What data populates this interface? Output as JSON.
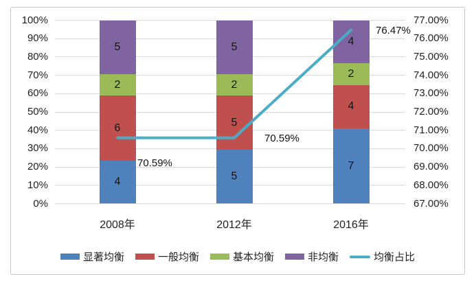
{
  "chart_data": {
    "type": "bar",
    "subtype": "100%-stacked-column-with-line",
    "title": "",
    "categories": [
      "2008年",
      "2012年",
      "2016年"
    ],
    "series": [
      {
        "name": "显著均衡",
        "type": "bar",
        "color": "#4F81BD",
        "values": [
          4,
          5,
          7
        ]
      },
      {
        "name": "一般均衡",
        "type": "bar",
        "color": "#C0504D",
        "values": [
          6,
          5,
          4
        ]
      },
      {
        "name": "基本均衡",
        "type": "bar",
        "color": "#9BBB59",
        "values": [
          2,
          2,
          2
        ]
      },
      {
        "name": "非均衡",
        "type": "bar",
        "color": "#8064A2",
        "values": [
          5,
          5,
          4
        ]
      },
      {
        "name": "均衡占比",
        "type": "line",
        "axis": "right",
        "color": "#4BACC6",
        "values": [
          70.59,
          70.59,
          76.47
        ],
        "data_labels": [
          "70.59%",
          "70.59%",
          "76.47%"
        ]
      }
    ],
    "left_axis": {
      "min": 0,
      "max": 100,
      "step": 10,
      "tick_labels": [
        "0%",
        "10%",
        "20%",
        "30%",
        "40%",
        "50%",
        "60%",
        "70%",
        "80%",
        "90%",
        "100%"
      ]
    },
    "right_axis": {
      "min": 67,
      "max": 77,
      "step": 1,
      "tick_labels": [
        "67.00%",
        "68.00%",
        "69.00%",
        "70.00%",
        "71.00%",
        "72.00%",
        "73.00%",
        "74.00%",
        "75.00%",
        "76.00%",
        "77.00%"
      ]
    },
    "grid": true,
    "legend_position": "bottom",
    "legend": [
      "显著均衡",
      "一般均衡",
      "基本均衡",
      "非均衡",
      "均衡占比"
    ],
    "colors": {
      "grid": "#D9D9D9",
      "text": "#1f1f1f",
      "frame_border": "#C6C6C6",
      "background": "#FFFFFF"
    }
  }
}
